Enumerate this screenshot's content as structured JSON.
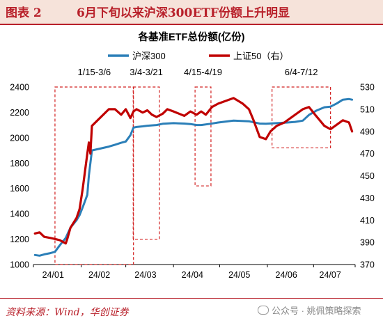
{
  "header": {
    "label": "图表 2",
    "title": "6月下旬以来沪深300ETF份额上升明显"
  },
  "footer": {
    "source": "资料来源：Wind，华创证券",
    "watermark": "公众号 · 姚佩策略探索"
  },
  "chart_data": {
    "type": "line",
    "title": "各基准ETF总份额(亿份)",
    "legend_position": "top",
    "x_ticks": [
      "24/01",
      "24/02",
      "24/03",
      "24/04",
      "24/05",
      "24/06",
      "24/07"
    ],
    "y_left": {
      "ticks": [
        1000,
        1200,
        1400,
        1600,
        1800,
        2000,
        2200,
        2400
      ],
      "range": [
        1000,
        2400
      ]
    },
    "y_right": {
      "ticks": [
        370,
        390,
        410,
        430,
        450,
        470,
        490,
        510,
        530
      ],
      "range": [
        370,
        530
      ]
    },
    "colors": {
      "csi300": "#2b7fb8",
      "sse50": "#c00000",
      "box": "#d22020"
    },
    "series": [
      {
        "name": "沪深300",
        "axis": "left",
        "color": "#2b7fb8",
        "points": [
          [
            "2024-01-02",
            1075
          ],
          [
            "2024-01-05",
            1070
          ],
          [
            "2024-01-08",
            1080
          ],
          [
            "2024-01-12",
            1090
          ],
          [
            "2024-01-15",
            1100
          ],
          [
            "2024-01-18",
            1150
          ],
          [
            "2024-01-22",
            1210
          ],
          [
            "2024-01-25",
            1290
          ],
          [
            "2024-01-29",
            1350
          ],
          [
            "2024-01-31",
            1390
          ],
          [
            "2024-02-02",
            1450
          ],
          [
            "2024-02-05",
            1550
          ],
          [
            "2024-02-06",
            1700
          ],
          [
            "2024-02-07",
            1800
          ],
          [
            "2024-02-08",
            1900
          ],
          [
            "2024-02-19",
            1930
          ],
          [
            "2024-02-23",
            1945
          ],
          [
            "2024-02-27",
            1960
          ],
          [
            "2024-03-01",
            1970
          ],
          [
            "2024-03-04",
            2020
          ],
          [
            "2024-03-06",
            2080
          ],
          [
            "2024-03-08",
            2085
          ],
          [
            "2024-03-12",
            2090
          ],
          [
            "2024-03-15",
            2095
          ],
          [
            "2024-03-21",
            2100
          ],
          [
            "2024-03-25",
            2110
          ],
          [
            "2024-04-01",
            2115
          ],
          [
            "2024-04-08",
            2112
          ],
          [
            "2024-04-12",
            2108
          ],
          [
            "2024-04-16",
            2100
          ],
          [
            "2024-04-19",
            2100
          ],
          [
            "2024-04-25",
            2110
          ],
          [
            "2024-04-30",
            2120
          ],
          [
            "2024-05-10",
            2135
          ],
          [
            "2024-05-20",
            2130
          ],
          [
            "2024-05-27",
            2112
          ],
          [
            "2024-05-31",
            2110
          ],
          [
            "2024-06-07",
            2115
          ],
          [
            "2024-06-14",
            2120
          ],
          [
            "2024-06-19",
            2125
          ],
          [
            "2024-06-24",
            2135
          ],
          [
            "2024-06-28",
            2180
          ],
          [
            "2024-07-03",
            2215
          ],
          [
            "2024-07-08",
            2240
          ],
          [
            "2024-07-12",
            2245
          ],
          [
            "2024-07-16",
            2270
          ],
          [
            "2024-07-20",
            2300
          ],
          [
            "2024-07-24",
            2305
          ],
          [
            "2024-07-26",
            2300
          ]
        ]
      },
      {
        "name": "上证50（右）",
        "axis": "right",
        "color": "#c00000",
        "points": [
          [
            "2024-01-02",
            398
          ],
          [
            "2024-01-05",
            399
          ],
          [
            "2024-01-08",
            395
          ],
          [
            "2024-01-12",
            394
          ],
          [
            "2024-01-15",
            393
          ],
          [
            "2024-01-18",
            392
          ],
          [
            "2024-01-22",
            389
          ],
          [
            "2024-01-23",
            393
          ],
          [
            "2024-01-25",
            403
          ],
          [
            "2024-01-29",
            412
          ],
          [
            "2024-01-31",
            420
          ],
          [
            "2024-02-02",
            438
          ],
          [
            "2024-02-05",
            470
          ],
          [
            "2024-02-06",
            480
          ],
          [
            "2024-02-07",
            470
          ],
          [
            "2024-02-08",
            495
          ],
          [
            "2024-02-19",
            510
          ],
          [
            "2024-02-23",
            510
          ],
          [
            "2024-02-27",
            505
          ],
          [
            "2024-03-01",
            510
          ],
          [
            "2024-03-04",
            502
          ],
          [
            "2024-03-06",
            508
          ],
          [
            "2024-03-08",
            510
          ],
          [
            "2024-03-12",
            507
          ],
          [
            "2024-03-15",
            509
          ],
          [
            "2024-03-18",
            505
          ],
          [
            "2024-03-21",
            503
          ],
          [
            "2024-03-25",
            506
          ],
          [
            "2024-03-28",
            510
          ],
          [
            "2024-04-01",
            508
          ],
          [
            "2024-04-08",
            504
          ],
          [
            "2024-04-12",
            508
          ],
          [
            "2024-04-16",
            505
          ],
          [
            "2024-04-19",
            508
          ],
          [
            "2024-04-22",
            505
          ],
          [
            "2024-04-26",
            512
          ],
          [
            "2024-04-30",
            515
          ],
          [
            "2024-05-10",
            520
          ],
          [
            "2024-05-16",
            515
          ],
          [
            "2024-05-20",
            510
          ],
          [
            "2024-05-23",
            500
          ],
          [
            "2024-05-27",
            485
          ],
          [
            "2024-05-31",
            483
          ],
          [
            "2024-06-03",
            490
          ],
          [
            "2024-06-07",
            495
          ],
          [
            "2024-06-12",
            498
          ],
          [
            "2024-06-14",
            500
          ],
          [
            "2024-06-19",
            505
          ],
          [
            "2024-06-24",
            510
          ],
          [
            "2024-06-28",
            512
          ],
          [
            "2024-07-02",
            505
          ],
          [
            "2024-07-05",
            500
          ],
          [
            "2024-07-08",
            495
          ],
          [
            "2024-07-12",
            492
          ],
          [
            "2024-07-16",
            496
          ],
          [
            "2024-07-20",
            500
          ],
          [
            "2024-07-24",
            498
          ],
          [
            "2024-07-26",
            490
          ]
        ]
      }
    ],
    "annotations": [
      {
        "label": "1/15-3/6",
        "from": "2024-01-15",
        "to": "2024-03-06",
        "y_range": [
          1000,
          2400
        ]
      },
      {
        "label": "3/4-3/21",
        "from": "2024-03-04",
        "to": "2024-03-21",
        "y_range": [
          1200,
          2400
        ]
      },
      {
        "label": "4/15-4/19",
        "from": "2024-04-15",
        "to": "2024-04-19",
        "y_range": [
          1620,
          2400
        ]
      },
      {
        "label": "6/4-7/12",
        "from": "2024-06-04",
        "to": "2024-07-12",
        "y_range": [
          1920,
          2400
        ]
      }
    ]
  }
}
